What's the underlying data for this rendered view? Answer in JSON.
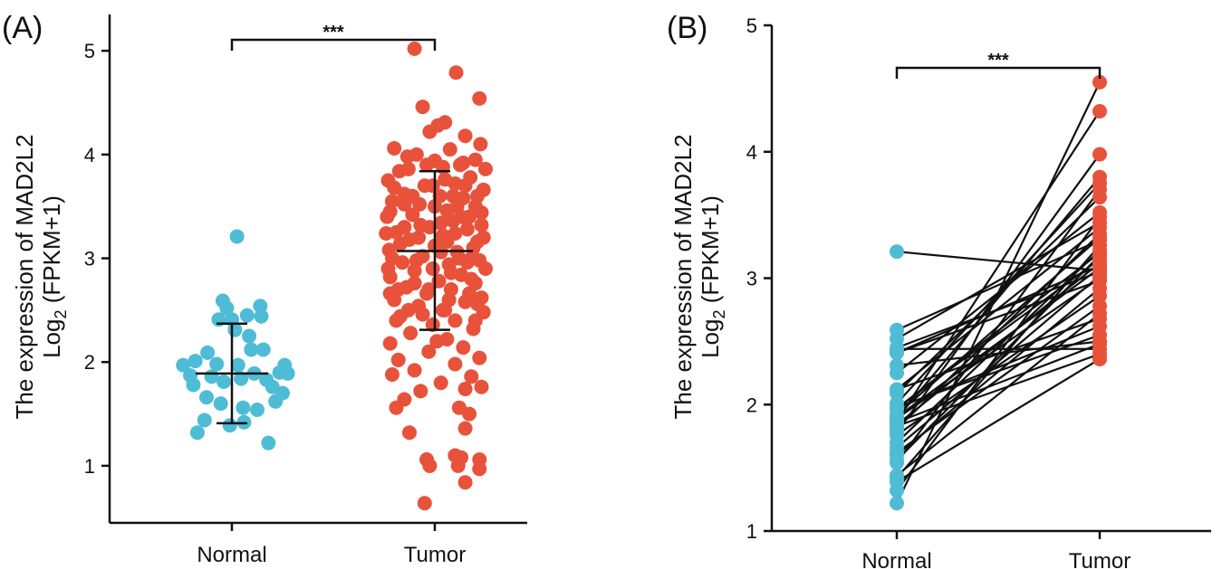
{
  "figure_labels": {
    "panel_a": "(A)",
    "panel_b": "(B)"
  },
  "chart_data": [
    {
      "type": "scatter",
      "subtype": "jitter-dotplot-with-mean-sd",
      "panel": "(A)",
      "ylabel_line1": "The expression of MAD2L2",
      "ylabel_line2_prefix": "Log",
      "ylabel_line2_sub": "2",
      "ylabel_line2_suffix": " (FPKM+1)",
      "ylim": [
        0.45,
        5.35
      ],
      "yticks": [
        1,
        2,
        3,
        4,
        5
      ],
      "categories": [
        "Normal",
        "Tumor"
      ],
      "significance": "***",
      "series": [
        {
          "name": "Normal",
          "color": "#4fbcd6",
          "mean": 1.89,
          "sd_low": 1.41,
          "sd_high": 2.37,
          "points": [
            [
              -0.48,
              1.97
            ],
            [
              -0.41,
              1.87
            ],
            [
              -0.36,
              2.01
            ],
            [
              -0.34,
              1.32
            ],
            [
              -0.27,
              1.44
            ],
            [
              -0.24,
              2.09
            ],
            [
              -0.2,
              1.86
            ],
            [
              -0.15,
              1.98
            ],
            [
              -0.13,
              2.41
            ],
            [
              -0.11,
              1.6
            ],
            [
              -0.09,
              2.59
            ],
            [
              -0.05,
              2.52
            ],
            [
              -0.02,
              1.39
            ],
            [
              0.0,
              2.41
            ],
            [
              0.03,
              2.31
            ],
            [
              0.06,
              1.97
            ],
            [
              0.09,
              1.84
            ],
            [
              0.12,
              1.42
            ],
            [
              0.15,
              2.45
            ],
            [
              0.17,
              2.25
            ],
            [
              0.19,
              2.12
            ],
            [
              0.22,
              1.89
            ],
            [
              0.25,
              1.54
            ],
            [
              0.28,
              2.54
            ],
            [
              0.31,
              2.12
            ],
            [
              0.34,
              1.83
            ],
            [
              0.36,
              1.22
            ],
            [
              0.4,
              1.76
            ],
            [
              0.43,
              1.62
            ],
            [
              0.47,
              1.9
            ],
            [
              0.5,
              1.7
            ],
            [
              0.52,
              1.97
            ],
            [
              0.55,
              1.89
            ],
            [
              -0.08,
              1.81
            ],
            [
              0.05,
              3.21
            ],
            [
              -0.25,
              1.66
            ],
            [
              -0.38,
              1.78
            ],
            [
              0.11,
              1.56
            ],
            [
              0.29,
              2.44
            ]
          ]
        },
        {
          "name": "Tumor",
          "color": "#e8523b",
          "mean": 3.07,
          "sd_low": 2.31,
          "sd_high": 3.84,
          "points": [
            [
              -0.2,
              5.02
            ],
            [
              0.21,
              4.79
            ],
            [
              0.44,
              4.54
            ],
            [
              -0.12,
              4.46
            ],
            [
              0.1,
              4.31
            ],
            [
              0.03,
              4.28
            ],
            [
              -0.05,
              4.22
            ],
            [
              0.3,
              4.18
            ],
            [
              0.45,
              4.1
            ],
            [
              -0.4,
              4.06
            ],
            [
              0.15,
              4.05
            ],
            [
              0.4,
              3.95
            ],
            [
              -0.27,
              3.98
            ],
            [
              0.5,
              3.86
            ],
            [
              0.0,
              3.94
            ],
            [
              -0.18,
              4.0
            ],
            [
              0.25,
              3.9
            ],
            [
              -0.35,
              3.84
            ],
            [
              0.08,
              3.88
            ],
            [
              -0.46,
              3.75
            ],
            [
              0.35,
              3.78
            ],
            [
              -0.1,
              3.7
            ],
            [
              0.2,
              3.72
            ],
            [
              0.48,
              3.66
            ],
            [
              -0.3,
              3.62
            ],
            [
              0.05,
              3.6
            ],
            [
              -0.42,
              3.55
            ],
            [
              0.28,
              3.58
            ],
            [
              -0.15,
              3.52
            ],
            [
              0.4,
              3.5
            ],
            [
              0.12,
              3.46
            ],
            [
              -0.47,
              3.4
            ],
            [
              -0.22,
              3.42
            ],
            [
              0.18,
              3.36
            ],
            [
              0.46,
              3.32
            ],
            [
              -0.05,
              3.3
            ],
            [
              0.32,
              3.28
            ],
            [
              -0.38,
              3.25
            ],
            [
              0.08,
              3.22
            ],
            [
              -0.25,
              3.18
            ],
            [
              0.42,
              3.16
            ],
            [
              0.0,
              3.12
            ],
            [
              -0.45,
              3.08
            ],
            [
              0.22,
              3.06
            ],
            [
              -0.12,
              3.02
            ],
            [
              0.36,
              3.0
            ],
            [
              -0.32,
              2.96
            ],
            [
              0.14,
              2.94
            ],
            [
              0.5,
              2.9
            ],
            [
              -0.2,
              2.88
            ],
            [
              0.26,
              2.84
            ],
            [
              -0.44,
              2.82
            ],
            [
              0.04,
              2.78
            ],
            [
              0.4,
              2.76
            ],
            [
              -0.28,
              2.72
            ],
            [
              0.16,
              2.7
            ],
            [
              -0.08,
              2.66
            ],
            [
              0.46,
              2.62
            ],
            [
              -0.4,
              2.6
            ],
            [
              0.3,
              2.58
            ],
            [
              -0.16,
              2.54
            ],
            [
              0.1,
              2.5
            ],
            [
              0.48,
              2.48
            ],
            [
              -0.34,
              2.44
            ],
            [
              0.2,
              2.4
            ],
            [
              -0.02,
              2.36
            ],
            [
              0.38,
              2.32
            ],
            [
              -0.24,
              2.28
            ],
            [
              0.12,
              2.22
            ],
            [
              -0.44,
              2.18
            ],
            [
              0.28,
              2.14
            ],
            [
              -0.06,
              2.1
            ],
            [
              0.44,
              2.04
            ],
            [
              -0.36,
              2.02
            ],
            [
              0.2,
              1.98
            ],
            [
              -0.2,
              1.92
            ],
            [
              0.36,
              1.86
            ],
            [
              -0.42,
              1.88
            ],
            [
              0.06,
              1.8
            ],
            [
              0.3,
              1.74
            ],
            [
              -0.14,
              1.72
            ],
            [
              0.46,
              1.76
            ],
            [
              -0.3,
              1.64
            ],
            [
              0.24,
              1.56
            ],
            [
              0.34,
              1.5
            ],
            [
              -0.38,
              1.56
            ],
            [
              0.3,
              1.36
            ],
            [
              -0.25,
              1.32
            ],
            [
              0.2,
              1.1
            ],
            [
              -0.08,
              1.06
            ],
            [
              0.44,
              1.06
            ],
            [
              0.26,
              1.08
            ],
            [
              -0.05,
              1.0
            ],
            [
              0.23,
              1.0
            ],
            [
              0.44,
              0.97
            ],
            [
              0.3,
              0.84
            ],
            [
              -0.1,
              0.64
            ],
            [
              -0.44,
              3.45
            ],
            [
              0.42,
              3.6
            ],
            [
              -0.3,
              3.3
            ],
            [
              0.34,
              3.4
            ],
            [
              -0.42,
              3.0
            ],
            [
              0.06,
              3.34
            ],
            [
              0.18,
              3.6
            ],
            [
              -0.08,
              3.9
            ],
            [
              0.3,
              3.7
            ],
            [
              -0.36,
              2.7
            ],
            [
              0.14,
              2.6
            ],
            [
              -0.26,
              2.5
            ],
            [
              0.4,
              2.4
            ],
            [
              0.02,
              2.2
            ],
            [
              -0.46,
              2.9
            ],
            [
              0.48,
              3.2
            ],
            [
              -0.16,
              3.2
            ],
            [
              0.24,
              3.0
            ],
            [
              -0.02,
              2.9
            ],
            [
              0.36,
              2.8
            ],
            [
              -0.3,
              3.52
            ],
            [
              0.1,
              3.76
            ],
            [
              -0.4,
              3.68
            ],
            [
              0.2,
              3.24
            ],
            [
              0.46,
              3.44
            ],
            [
              -0.2,
              2.76
            ],
            [
              0.34,
              2.66
            ],
            [
              -0.12,
              2.46
            ],
            [
              0.06,
              3.06
            ],
            [
              -0.34,
              3.14
            ],
            [
              0.26,
              3.4
            ],
            [
              0.0,
              3.5
            ],
            [
              -0.22,
              3.6
            ],
            [
              0.44,
              2.98
            ],
            [
              -0.48,
              3.24
            ],
            [
              0.16,
              2.86
            ],
            [
              -0.06,
              2.7
            ],
            [
              0.38,
              3.1
            ],
            [
              -0.44,
              2.66
            ],
            [
              0.12,
              3.16
            ],
            [
              -0.26,
              3.86
            ],
            [
              0.28,
              3.92
            ],
            [
              -0.14,
              3.32
            ],
            [
              0.42,
              2.56
            ],
            [
              -0.38,
              2.4
            ],
            [
              0.08,
              2.5
            ],
            [
              -0.02,
              3.7
            ],
            [
              0.32,
              2.96
            ],
            [
              -0.18,
              2.98
            ],
            [
              0.22,
              3.5
            ]
          ]
        }
      ]
    },
    {
      "type": "line",
      "subtype": "paired-slope",
      "panel": "(B)",
      "ylabel_line1": "The expression of MAD2L2",
      "ylabel_line2_prefix": "Log",
      "ylabel_line2_sub": "2",
      "ylabel_line2_suffix": " (FPKM+1)",
      "ylim": [
        1,
        5
      ],
      "yticks": [
        1,
        2,
        3,
        4,
        5
      ],
      "categories": [
        "Normal",
        "Tumor"
      ],
      "significance": "***",
      "normal_color": "#4fbcd6",
      "tumor_color": "#e8523b",
      "pairs": [
        [
          3.21,
          3.06
        ],
        [
          2.59,
          3.3
        ],
        [
          2.52,
          3.44
        ],
        [
          2.45,
          3.05
        ],
        [
          2.41,
          2.98
        ],
        [
          2.41,
          3.1
        ],
        [
          2.31,
          2.5
        ],
        [
          2.25,
          3.52
        ],
        [
          2.12,
          3.4
        ],
        [
          2.12,
          2.68
        ],
        [
          2.09,
          3.64
        ],
        [
          2.01,
          3.75
        ],
        [
          1.98,
          2.55
        ],
        [
          1.97,
          3.15
        ],
        [
          1.97,
          3.2
        ],
        [
          1.97,
          2.62
        ],
        [
          1.9,
          3.08
        ],
        [
          1.89,
          3.8
        ],
        [
          1.89,
          3.0
        ],
        [
          1.87,
          4.32
        ],
        [
          1.86,
          2.48
        ],
        [
          1.84,
          3.12
        ],
        [
          1.83,
          2.4
        ],
        [
          1.81,
          3.35
        ],
        [
          1.78,
          3.98
        ],
        [
          1.76,
          2.86
        ],
        [
          1.7,
          3.22
        ],
        [
          1.66,
          3.02
        ],
        [
          1.62,
          2.78
        ],
        [
          1.6,
          2.92
        ],
        [
          1.56,
          3.18
        ],
        [
          1.54,
          3.7
        ],
        [
          1.44,
          2.72
        ],
        [
          1.42,
          3.26
        ],
        [
          1.39,
          2.36
        ],
        [
          1.32,
          3.48
        ],
        [
          1.22,
          4.55
        ],
        [
          2.44,
          2.44
        ],
        [
          1.92,
          3.32
        ]
      ]
    }
  ]
}
